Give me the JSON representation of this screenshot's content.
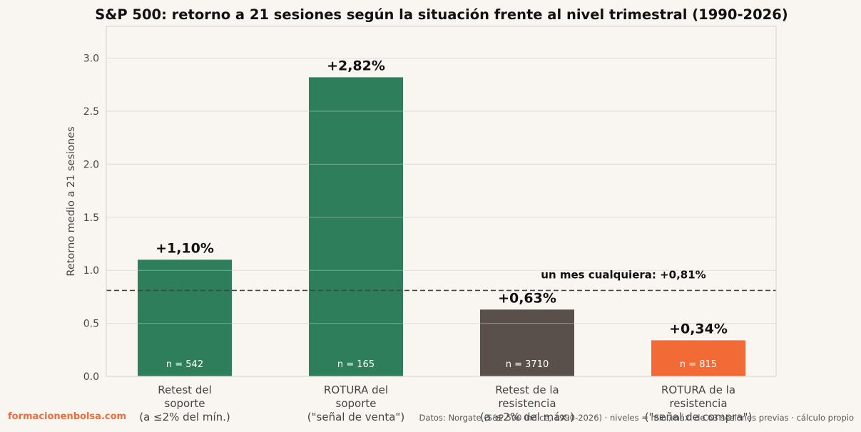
{
  "chart_data": {
    "type": "bar",
    "title": "S&P 500: retorno a 21 sesiones según la situación frente al nivel trimestral (1990-2026)",
    "ylabel": "Retorno medio a 21 sesiones",
    "xlabel": "",
    "ylim": [
      0,
      3.3
    ],
    "yticks": [
      "0.0",
      "0.5",
      "1.0",
      "1.5",
      "2.0",
      "2.5",
      "3.0"
    ],
    "grid": true,
    "categories": [
      [
        "Retest del",
        "soporte",
        "(a ≤2% del mín.)"
      ],
      [
        "ROTURA del",
        "soporte",
        "(\"señal de venta\")"
      ],
      [
        "Retest de la",
        "resistencia",
        "(a ≤2% del máx.)"
      ],
      [
        "ROTURA de la",
        "resistencia",
        "(\"señal de compra\")"
      ]
    ],
    "values": [
      1.1,
      2.82,
      0.63,
      0.34
    ],
    "value_labels": [
      "+1,10%",
      "+2,82%",
      "+0,63%",
      "+0,34%"
    ],
    "n_labels": [
      "n = 542",
      "n = 165",
      "n = 3710",
      "n = 815"
    ],
    "colors": [
      "#2e7d5b",
      "#2e7d5b",
      "#59504b",
      "#f26a35"
    ],
    "reference_line": {
      "value": 0.81,
      "label": "un mes cualquiera: +0,81%"
    }
  },
  "footer": {
    "brand": "formacionenbolsa.com",
    "source": "Datos: Norgate (S&P 500 índice, 1990-2026) · niveles = mín./máx. de 63 sesiones previas · cálculo propio"
  }
}
